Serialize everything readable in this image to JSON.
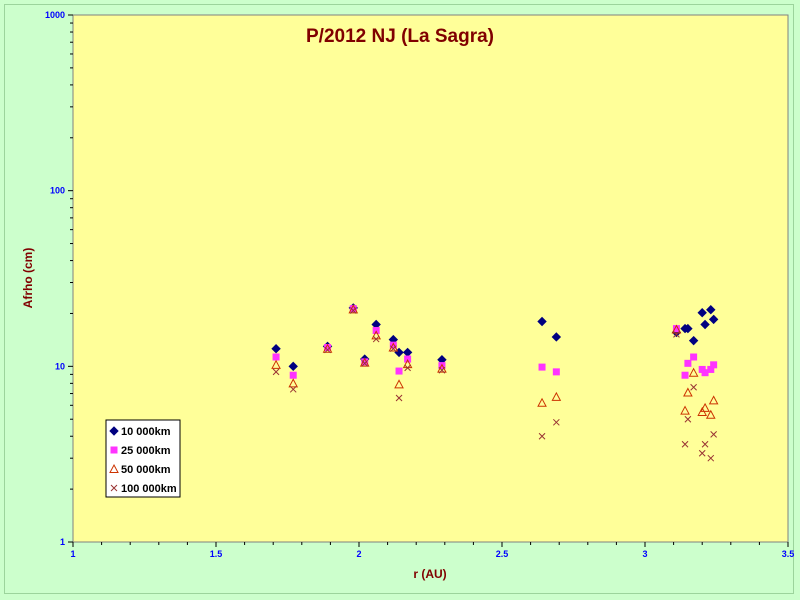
{
  "chart_data": {
    "type": "scatter",
    "title": "P/2012 NJ (La Sagra)",
    "xlabel": "r (AU)",
    "ylabel": "Afrho (cm)",
    "xlim": [
      1,
      3.5
    ],
    "ylim": [
      1,
      1000
    ],
    "yscale": "log",
    "x_ticks": [
      1,
      1.5,
      2,
      2.5,
      3,
      3.5
    ],
    "x_tick_labels": [
      "1",
      "1.5",
      "2",
      "2.5",
      "3",
      "3.5"
    ],
    "y_ticks": [
      1,
      10,
      100,
      1000
    ],
    "y_tick_labels": [
      "1",
      "10",
      "100",
      "1000"
    ],
    "grid": false,
    "legend_position": "bottom-left",
    "colors": {
      "plot_background": "#ffff99",
      "page_background": "#ccffcc",
      "axis_text": "#0000ff",
      "title_text": "#800000"
    },
    "series": [
      {
        "name": "10 000km",
        "marker": "diamond",
        "color": "#000080",
        "points": [
          [
            1.71,
            12.6
          ],
          [
            1.77,
            10.0
          ],
          [
            1.89,
            13.0
          ],
          [
            1.98,
            21.5
          ],
          [
            2.02,
            11.0
          ],
          [
            2.06,
            17.3
          ],
          [
            2.12,
            14.2
          ],
          [
            2.14,
            12.0
          ],
          [
            2.17,
            12.0
          ],
          [
            2.29,
            10.9
          ],
          [
            2.64,
            18.0
          ],
          [
            2.69,
            14.7
          ],
          [
            3.11,
            15.6
          ],
          [
            3.14,
            16.4
          ],
          [
            3.15,
            16.4
          ],
          [
            3.17,
            14.0
          ],
          [
            3.2,
            20.2
          ],
          [
            3.21,
            17.3
          ],
          [
            3.23,
            21.0
          ],
          [
            3.24,
            18.5
          ]
        ]
      },
      {
        "name": "25 000km",
        "marker": "square",
        "color": "#ff33ff",
        "points": [
          [
            1.71,
            11.3
          ],
          [
            1.77,
            8.9
          ],
          [
            1.89,
            12.8
          ],
          [
            1.98,
            21.3
          ],
          [
            2.02,
            10.6
          ],
          [
            2.06,
            16.0
          ],
          [
            2.12,
            13.2
          ],
          [
            2.14,
            9.4
          ],
          [
            2.17,
            11.0
          ],
          [
            2.29,
            10.1
          ],
          [
            2.64,
            9.9
          ],
          [
            2.69,
            9.3
          ],
          [
            3.11,
            16.4
          ],
          [
            3.14,
            8.9
          ],
          [
            3.15,
            10.4
          ],
          [
            3.17,
            11.3
          ],
          [
            3.2,
            9.6
          ],
          [
            3.21,
            9.2
          ],
          [
            3.23,
            9.6
          ],
          [
            3.24,
            10.2
          ]
        ]
      },
      {
        "name": "50 000km",
        "marker": "triangle",
        "color": "#cc3300",
        "points": [
          [
            1.71,
            10.2
          ],
          [
            1.77,
            8.0
          ],
          [
            1.89,
            12.6
          ],
          [
            1.98,
            21.1
          ],
          [
            2.02,
            10.5
          ],
          [
            2.06,
            15.0
          ],
          [
            2.12,
            12.8
          ],
          [
            2.14,
            7.9
          ],
          [
            2.17,
            10.3
          ],
          [
            2.29,
            9.7
          ],
          [
            2.64,
            6.2
          ],
          [
            2.69,
            6.7
          ],
          [
            3.11,
            16.2
          ],
          [
            3.14,
            5.6
          ],
          [
            3.15,
            7.1
          ],
          [
            3.17,
            9.2
          ],
          [
            3.2,
            5.5
          ],
          [
            3.21,
            5.8
          ],
          [
            3.23,
            5.3
          ],
          [
            3.24,
            6.4
          ]
        ]
      },
      {
        "name": "100 000km",
        "marker": "cross",
        "color": "#993333",
        "points": [
          [
            1.71,
            9.3
          ],
          [
            1.77,
            7.4
          ],
          [
            1.89,
            12.4
          ],
          [
            1.98,
            20.8
          ],
          [
            2.02,
            10.4
          ],
          [
            2.06,
            14.3
          ],
          [
            2.12,
            12.6
          ],
          [
            2.14,
            6.6
          ],
          [
            2.17,
            9.8
          ],
          [
            2.29,
            9.5
          ],
          [
            2.64,
            4.0
          ],
          [
            2.69,
            4.8
          ],
          [
            3.11,
            15.2
          ],
          [
            3.14,
            3.6
          ],
          [
            3.15,
            5.0
          ],
          [
            3.17,
            7.6
          ],
          [
            3.2,
            3.2
          ],
          [
            3.21,
            3.6
          ],
          [
            3.23,
            3.0
          ],
          [
            3.24,
            4.1
          ]
        ]
      }
    ]
  }
}
